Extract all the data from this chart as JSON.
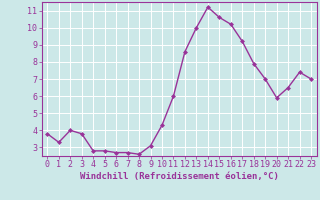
{
  "x": [
    0,
    1,
    2,
    3,
    4,
    5,
    6,
    7,
    8,
    9,
    10,
    11,
    12,
    13,
    14,
    15,
    16,
    17,
    18,
    19,
    20,
    21,
    22,
    23
  ],
  "y": [
    3.8,
    3.3,
    4.0,
    3.8,
    2.8,
    2.8,
    2.7,
    2.7,
    2.6,
    3.1,
    4.3,
    6.0,
    8.6,
    10.0,
    11.2,
    10.6,
    10.2,
    9.2,
    7.9,
    7.0,
    5.9,
    6.5,
    7.4,
    7.0
  ],
  "line_color": "#993399",
  "marker": "D",
  "marker_size": 2.0,
  "bg_color": "#cce8e8",
  "grid_color": "#ffffff",
  "xlabel": "Windchill (Refroidissement éolien,°C)",
  "xlabel_color": "#993399",
  "tick_color": "#993399",
  "axis_color": "#993399",
  "ylim": [
    2.5,
    11.5
  ],
  "yticks": [
    3,
    4,
    5,
    6,
    7,
    8,
    9,
    10,
    11
  ],
  "xlim": [
    -0.5,
    23.5
  ],
  "xticks": [
    0,
    1,
    2,
    3,
    4,
    5,
    6,
    7,
    8,
    9,
    10,
    11,
    12,
    13,
    14,
    15,
    16,
    17,
    18,
    19,
    20,
    21,
    22,
    23
  ],
  "xlabel_fontsize": 6.5,
  "tick_fontsize": 6.0,
  "line_width": 1.0
}
